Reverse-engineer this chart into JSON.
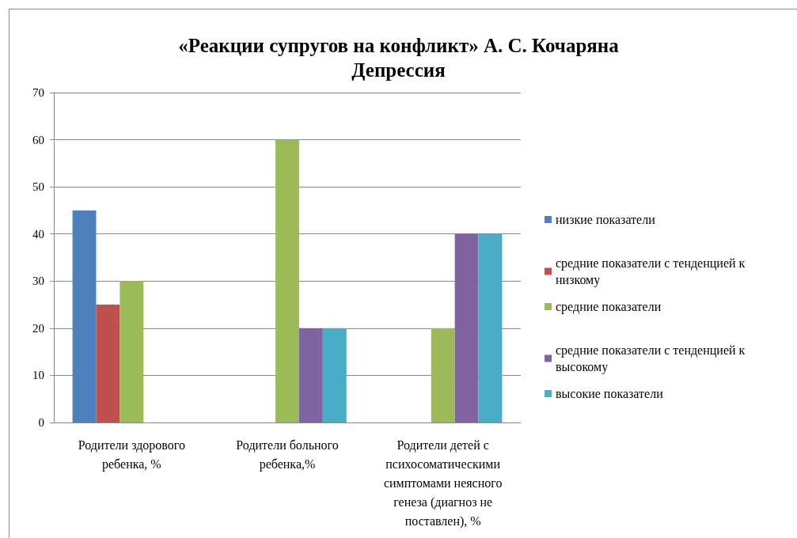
{
  "chart_data": {
    "type": "bar",
    "title": "«Реакции супругов на конфликт» А. С. Кочаряна",
    "subtitle": "Депрессия",
    "categories": [
      "Родители здорового ребенка, %",
      "Родители больного ребенка,%",
      "Родители детей с психосоматическими симптомами неясного генеза (диагноз не поставлен), %"
    ],
    "series": [
      {
        "name": "низкие показатели",
        "color": "#4f81bd",
        "values": [
          45,
          null,
          null
        ]
      },
      {
        "name": "средние показатели с тенденцией к низкому",
        "color": "#c0504d",
        "values": [
          25,
          null,
          null
        ]
      },
      {
        "name": "средние показатели",
        "color": "#9bbb59",
        "values": [
          30,
          60,
          20
        ]
      },
      {
        "name": "средние показатели с тенденцией к высокому",
        "color": "#8064a2",
        "values": [
          null,
          20,
          40
        ]
      },
      {
        "name": "высокие показатели",
        "color": "#4bacc6",
        "values": [
          null,
          20,
          40
        ]
      }
    ],
    "ylim": [
      0,
      70
    ],
    "yticks": [
      0,
      10,
      20,
      30,
      40,
      50,
      60,
      70
    ],
    "grid": "y",
    "legend": "right"
  }
}
